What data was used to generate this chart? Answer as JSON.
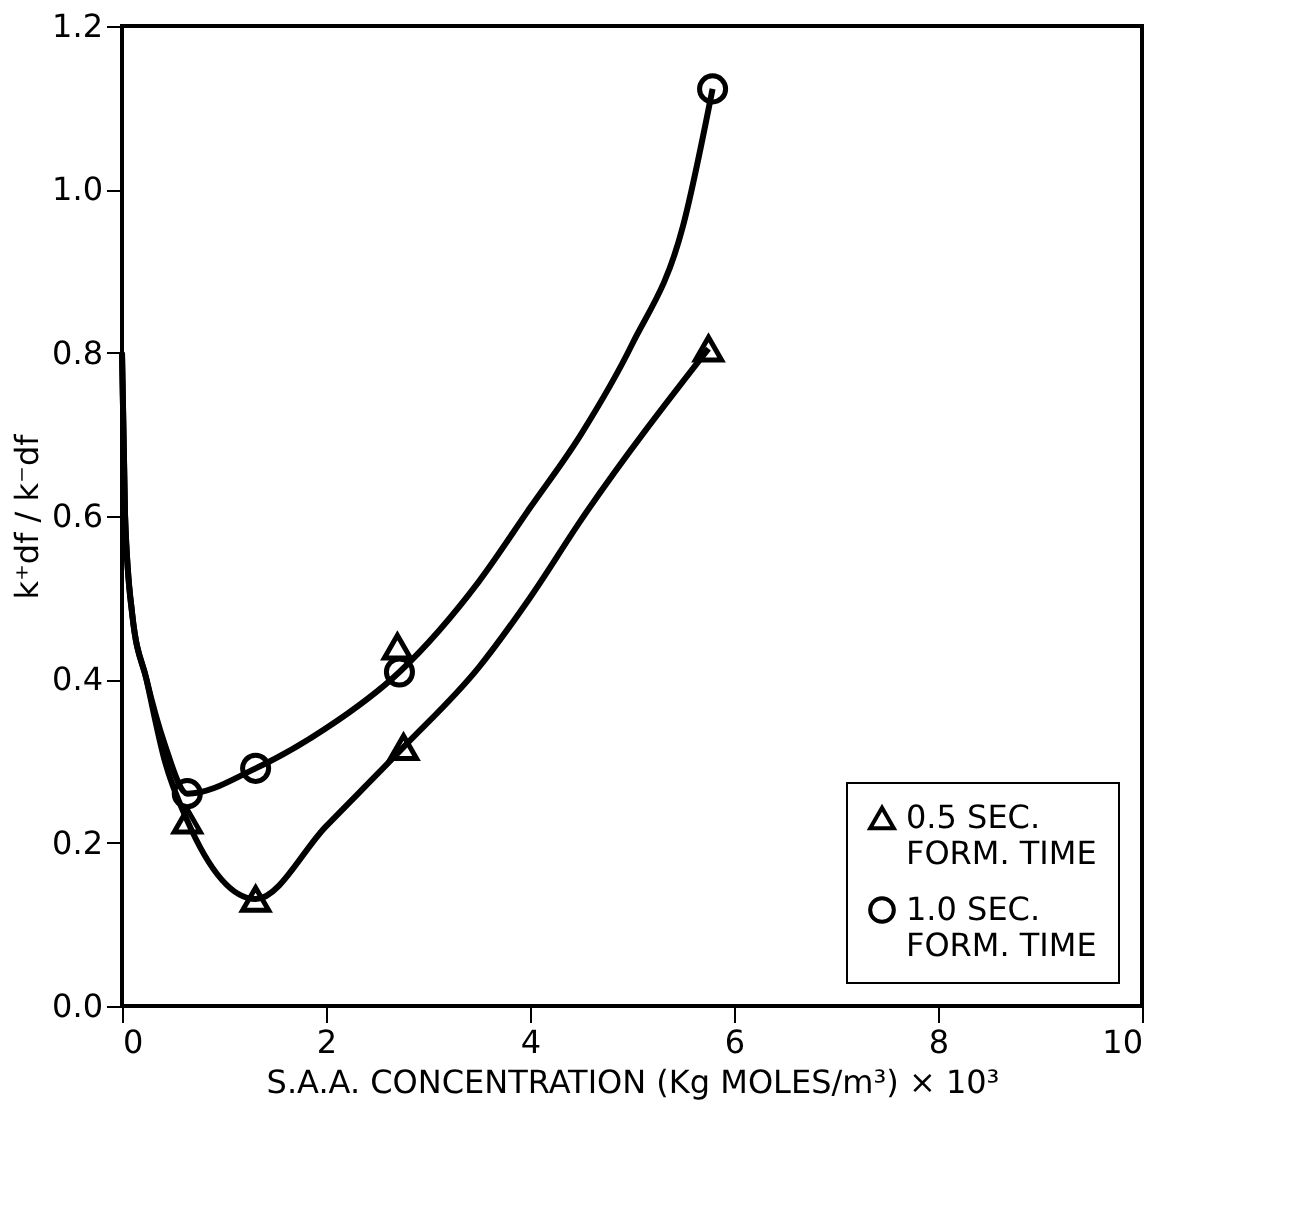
{
  "chart_data": {
    "type": "scatter",
    "xlabel": "S.A.A. CONCENTRATION (Kg MOLES/m³) × 10³",
    "ylabel": "k⁺df / k⁻df",
    "xlim": [
      0,
      10
    ],
    "xticks": [
      0,
      2,
      4,
      6,
      8,
      10
    ],
    "ylim": [
      0,
      1.2
    ],
    "yticks": [
      {
        "value": 0,
        "label": "0.0"
      },
      0.2,
      0.4,
      0.6,
      0.8,
      {
        "value": 1,
        "label": "1.0"
      },
      1.2
    ],
    "grid": false,
    "legend": "bottom right",
    "series": [
      {
        "name": "0.5 SEC.\nFORM. TIME",
        "marker": "triangle",
        "color": "#000000",
        "x": [
          0.64,
          1.31,
          2.7,
          2.76,
          5.75
        ],
        "values": [
          0.227,
          0.131,
          0.44,
          0.317,
          0.805
        ]
      },
      {
        "name": "1.0 SEC.\nFORM. TIME",
        "marker": "circle",
        "color": "#000000",
        "x": [
          0.64,
          1.31,
          2.72,
          5.79
        ],
        "values": [
          0.26,
          0.291,
          0.409,
          1.123
        ]
      },
      {
        "type": "line",
        "marker": "none",
        "line_style": "solid",
        "color": "#000000",
        "x": [
          0,
          0.03,
          0.1,
          0.24,
          0.42,
          0.64,
          1.31,
          2.0,
          2.76,
          3.5,
          4.0,
          4.5,
          5.75
        ],
        "values": [
          0.8,
          0.6,
          0.48,
          0.4,
          0.3,
          0.227,
          0.131,
          0.22,
          0.317,
          0.415,
          0.5,
          0.595,
          0.805
        ]
      },
      {
        "type": "line",
        "marker": "none",
        "line_style": "solid",
        "color": "#000000",
        "x": [
          0,
          0.03,
          0.1,
          0.24,
          0.42,
          0.64,
          1.31,
          2.0,
          2.72,
          3.5,
          4.0,
          4.5,
          5.0,
          5.5,
          5.79
        ],
        "values": [
          0.8,
          0.6,
          0.48,
          0.4,
          0.32,
          0.26,
          0.291,
          0.34,
          0.409,
          0.52,
          0.61,
          0.7,
          0.81,
          0.955,
          1.123
        ]
      }
    ]
  }
}
